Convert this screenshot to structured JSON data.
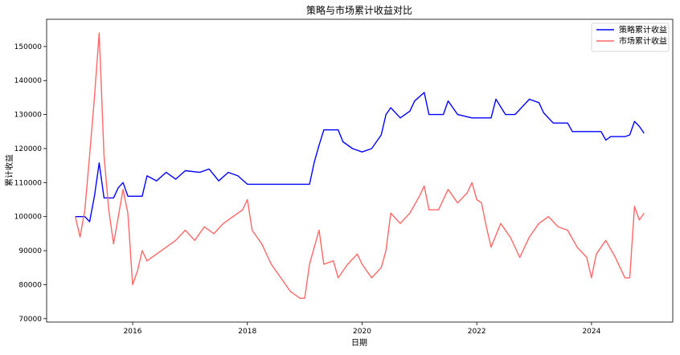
{
  "chart_data": {
    "type": "line",
    "title": "策略与市场累计收益对比",
    "xlabel": "日期",
    "ylabel": "累计收益",
    "x_ticks": [
      "2016",
      "2018",
      "2020",
      "2022",
      "2024"
    ],
    "y_ticks": [
      "70000",
      "80000",
      "90000",
      "100000",
      "110000",
      "120000",
      "130000",
      "140000",
      "150000"
    ],
    "xlim": [
      "2014-07",
      "2025-06"
    ],
    "ylim": [
      69000,
      158000
    ],
    "grid": false,
    "legend_position": "top-right",
    "series": [
      {
        "name": "策略累计收益",
        "color": "#0000ff",
        "points": [
          [
            "2015-01",
            100000
          ],
          [
            "2015-03",
            100000
          ],
          [
            "2015-04",
            98500
          ],
          [
            "2015-05",
            106000
          ],
          [
            "2015-06",
            115800
          ],
          [
            "2015-07",
            105500
          ],
          [
            "2015-09",
            105500
          ],
          [
            "2015-10",
            108500
          ],
          [
            "2015-11",
            110000
          ],
          [
            "2015-12",
            106000
          ],
          [
            "2016-03",
            106000
          ],
          [
            "2016-04",
            112000
          ],
          [
            "2016-06",
            110500
          ],
          [
            "2016-08",
            113000
          ],
          [
            "2016-10",
            111000
          ],
          [
            "2016-12",
            113500
          ],
          [
            "2017-03",
            113000
          ],
          [
            "2017-05",
            114000
          ],
          [
            "2017-07",
            110500
          ],
          [
            "2017-09",
            113000
          ],
          [
            "2017-11",
            112000
          ],
          [
            "2018-01",
            109500
          ],
          [
            "2018-06",
            109500
          ],
          [
            "2018-10",
            109500
          ],
          [
            "2019-02",
            109500
          ],
          [
            "2019-03",
            116000
          ],
          [
            "2019-04",
            121000
          ],
          [
            "2019-05",
            125500
          ],
          [
            "2019-08",
            125500
          ],
          [
            "2019-09",
            122000
          ],
          [
            "2019-11",
            120000
          ],
          [
            "2020-01",
            119000
          ],
          [
            "2020-03",
            120000
          ],
          [
            "2020-05",
            124000
          ],
          [
            "2020-06",
            130000
          ],
          [
            "2020-07",
            132000
          ],
          [
            "2020-09",
            129000
          ],
          [
            "2020-11",
            131000
          ],
          [
            "2020-12",
            134000
          ],
          [
            "2021-02",
            136500
          ],
          [
            "2021-03",
            130000
          ],
          [
            "2021-06",
            130000
          ],
          [
            "2021-07",
            134000
          ],
          [
            "2021-09",
            130000
          ],
          [
            "2021-12",
            129000
          ],
          [
            "2022-04",
            129000
          ],
          [
            "2022-05",
            134500
          ],
          [
            "2022-07",
            130000
          ],
          [
            "2022-09",
            130000
          ],
          [
            "2022-12",
            134500
          ],
          [
            "2023-02",
            133500
          ],
          [
            "2023-03",
            130500
          ],
          [
            "2023-05",
            127500
          ],
          [
            "2023-08",
            127500
          ],
          [
            "2023-09",
            125000
          ],
          [
            "2023-12",
            125000
          ],
          [
            "2024-03",
            125000
          ],
          [
            "2024-04",
            122500
          ],
          [
            "2024-05",
            123500
          ],
          [
            "2024-08",
            123500
          ],
          [
            "2024-09",
            124000
          ],
          [
            "2024-10",
            128000
          ],
          [
            "2024-11",
            126500
          ],
          [
            "2024-12",
            124500
          ]
        ]
      },
      {
        "name": "市场累计收益",
        "color": "#ff6666",
        "points": [
          [
            "2015-01",
            100000
          ],
          [
            "2015-02",
            94000
          ],
          [
            "2015-03",
            102000
          ],
          [
            "2015-04",
            118000
          ],
          [
            "2015-05",
            135000
          ],
          [
            "2015-06",
            154000
          ],
          [
            "2015-07",
            118000
          ],
          [
            "2015-08",
            102000
          ],
          [
            "2015-09",
            92000
          ],
          [
            "2015-10",
            100000
          ],
          [
            "2015-11",
            108000
          ],
          [
            "2015-12",
            101000
          ],
          [
            "2016-01",
            80000
          ],
          [
            "2016-02",
            84000
          ],
          [
            "2016-03",
            90000
          ],
          [
            "2016-04",
            87000
          ],
          [
            "2016-06",
            89000
          ],
          [
            "2016-08",
            91000
          ],
          [
            "2016-10",
            93000
          ],
          [
            "2016-12",
            96000
          ],
          [
            "2017-02",
            93000
          ],
          [
            "2017-04",
            97000
          ],
          [
            "2017-06",
            95000
          ],
          [
            "2017-08",
            98000
          ],
          [
            "2017-10",
            100000
          ],
          [
            "2017-12",
            102000
          ],
          [
            "2018-01",
            105000
          ],
          [
            "2018-02",
            96000
          ],
          [
            "2018-04",
            92000
          ],
          [
            "2018-06",
            86000
          ],
          [
            "2018-08",
            82000
          ],
          [
            "2018-10",
            78000
          ],
          [
            "2018-12",
            76000
          ],
          [
            "2019-01",
            76000
          ],
          [
            "2019-02",
            86000
          ],
          [
            "2019-04",
            96000
          ],
          [
            "2019-05",
            86000
          ],
          [
            "2019-07",
            87000
          ],
          [
            "2019-08",
            82000
          ],
          [
            "2019-10",
            86000
          ],
          [
            "2019-12",
            89000
          ],
          [
            "2020-01",
            86000
          ],
          [
            "2020-03",
            82000
          ],
          [
            "2020-05",
            85000
          ],
          [
            "2020-06",
            90000
          ],
          [
            "2020-07",
            101000
          ],
          [
            "2020-09",
            98000
          ],
          [
            "2020-11",
            101000
          ],
          [
            "2021-01",
            106000
          ],
          [
            "2021-02",
            109000
          ],
          [
            "2021-03",
            102000
          ],
          [
            "2021-05",
            102000
          ],
          [
            "2021-07",
            108000
          ],
          [
            "2021-09",
            104000
          ],
          [
            "2021-11",
            107000
          ],
          [
            "2021-12",
            110000
          ],
          [
            "2022-01",
            105000
          ],
          [
            "2022-02",
            104000
          ],
          [
            "2022-03",
            97000
          ],
          [
            "2022-04",
            91000
          ],
          [
            "2022-06",
            98000
          ],
          [
            "2022-08",
            94000
          ],
          [
            "2022-10",
            88000
          ],
          [
            "2022-12",
            94000
          ],
          [
            "2023-02",
            98000
          ],
          [
            "2023-04",
            100000
          ],
          [
            "2023-06",
            97000
          ],
          [
            "2023-08",
            96000
          ],
          [
            "2023-10",
            91000
          ],
          [
            "2023-12",
            88000
          ],
          [
            "2024-01",
            82000
          ],
          [
            "2024-02",
            89000
          ],
          [
            "2024-04",
            93000
          ],
          [
            "2024-06",
            88000
          ],
          [
            "2024-08",
            82000
          ],
          [
            "2024-09",
            82000
          ],
          [
            "2024-10",
            103000
          ],
          [
            "2024-11",
            99000
          ],
          [
            "2024-12",
            101000
          ]
        ]
      }
    ]
  }
}
